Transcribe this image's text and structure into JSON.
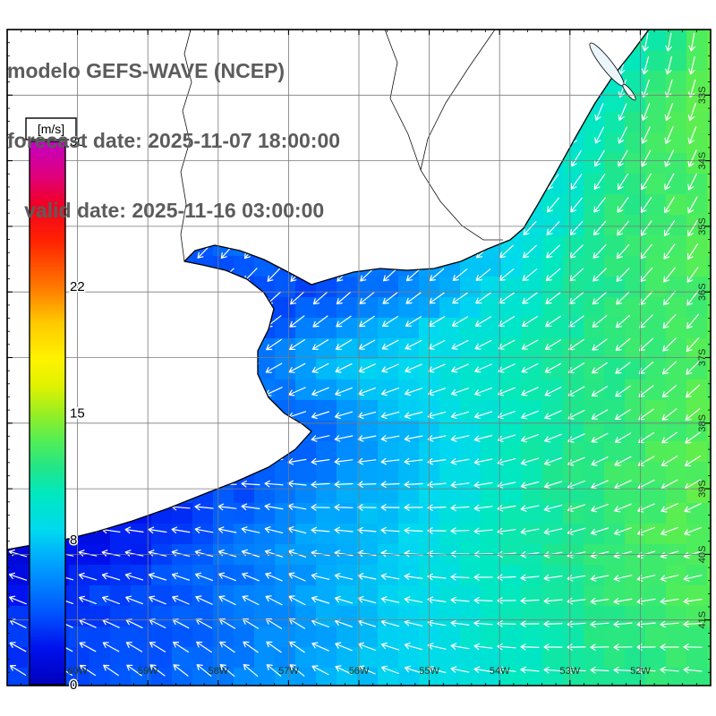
{
  "header": {
    "line1": "modelo GEFS-WAVE (NCEP)",
    "line2": "forecast date: 2025-11-07 18:00:00",
    "line3": "   valid date: 2025-11-16 03:00:00"
  },
  "colorbar": {
    "unit": "[m/s]",
    "min": 0,
    "max": 30,
    "ticks": [
      30,
      22,
      15,
      8,
      0
    ],
    "stops": [
      {
        "v": 0,
        "c": "#0000bb"
      },
      {
        "v": 2,
        "c": "#0011ee"
      },
      {
        "v": 4,
        "c": "#0055ff"
      },
      {
        "v": 6.5,
        "c": "#009dff"
      },
      {
        "v": 8.5,
        "c": "#00d9f0"
      },
      {
        "v": 10.5,
        "c": "#00e8c0"
      },
      {
        "v": 12,
        "c": "#22e688"
      },
      {
        "v": 13.5,
        "c": "#55ee55"
      },
      {
        "v": 15,
        "c": "#99ee22"
      },
      {
        "v": 16.5,
        "c": "#e0f200"
      },
      {
        "v": 18,
        "c": "#fff200"
      },
      {
        "v": 20,
        "c": "#ffc800"
      },
      {
        "v": 22,
        "c": "#ff7700"
      },
      {
        "v": 24.5,
        "c": "#ff2200"
      },
      {
        "v": 26.5,
        "c": "#f20022"
      },
      {
        "v": 28,
        "c": "#e00077"
      },
      {
        "v": 30,
        "c": "#c400c4"
      }
    ]
  },
  "map": {
    "lat_labels": [
      "33S",
      "34S",
      "35S",
      "36S",
      "37S",
      "38S",
      "39S",
      "40S",
      "41S"
    ],
    "lon_labels": [
      "60W",
      "59W",
      "58W",
      "57W",
      "56W",
      "55W",
      "54W",
      "53W",
      "52W"
    ],
    "arrow_color": "#ffffff",
    "grid_color": "#7a7a7a",
    "land_color": "#ffffff",
    "coast_color": "#000000",
    "label_color": "#223322"
  }
}
